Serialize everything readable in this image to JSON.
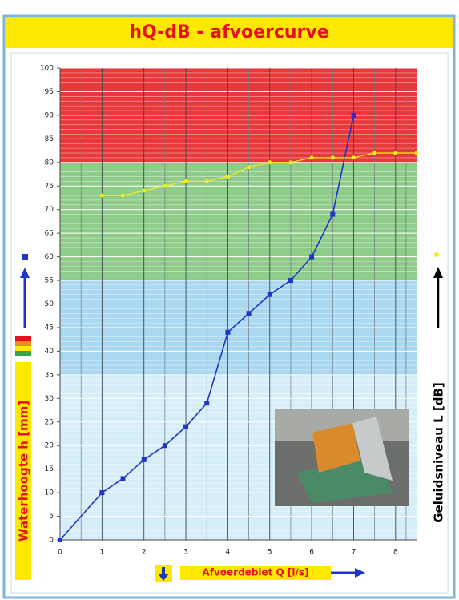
{
  "chart_data": {
    "type": "line",
    "title": "hQ-dB - afvoercurve",
    "x_label": "Afvoerdebiet Q [l/s]",
    "y_label": "Waterhoogte h [mm]",
    "y2_label": "Geluidsniveau L [dB]",
    "xlim": [
      0,
      8.5
    ],
    "ylim": [
      0,
      100
    ],
    "xticks": [
      0,
      1,
      2,
      3,
      4,
      5,
      6,
      7,
      8
    ],
    "yticks": [
      0,
      5,
      10,
      15,
      20,
      25,
      30,
      35,
      40,
      45,
      50,
      55,
      60,
      65,
      70,
      75,
      80,
      85,
      90,
      95,
      100
    ],
    "grid": true,
    "bands": [
      {
        "from": 0,
        "to": 35,
        "color": "#d6eef8"
      },
      {
        "from": 35,
        "to": 55,
        "color": "#a9d8f0"
      },
      {
        "from": 55,
        "to": 80,
        "color": "#8fcc8a"
      },
      {
        "from": 80,
        "to": 100,
        "color": "#e9383a"
      }
    ],
    "series": [
      {
        "color": "#1f35c8",
        "marker": "square",
        "x": [
          0,
          1,
          1.5,
          2,
          2.5,
          3,
          3.5,
          4,
          4.5,
          5,
          5.5,
          6,
          6.5,
          7
        ],
        "values": [
          0,
          10,
          13,
          17,
          20,
          24,
          29,
          44,
          48,
          52,
          55,
          60,
          69,
          90
        ]
      },
      {
        "color": "#f2ee1a",
        "marker": "circle",
        "x": [
          1,
          1.5,
          2,
          2.5,
          3,
          3.5,
          4,
          4.5,
          5,
          5.5,
          6,
          6.5,
          7,
          7.5,
          8,
          8.5
        ],
        "values": [
          73,
          73,
          74,
          75,
          76,
          76,
          77,
          79,
          80,
          80,
          81,
          81,
          81,
          82,
          82,
          82
        ]
      }
    ]
  }
}
